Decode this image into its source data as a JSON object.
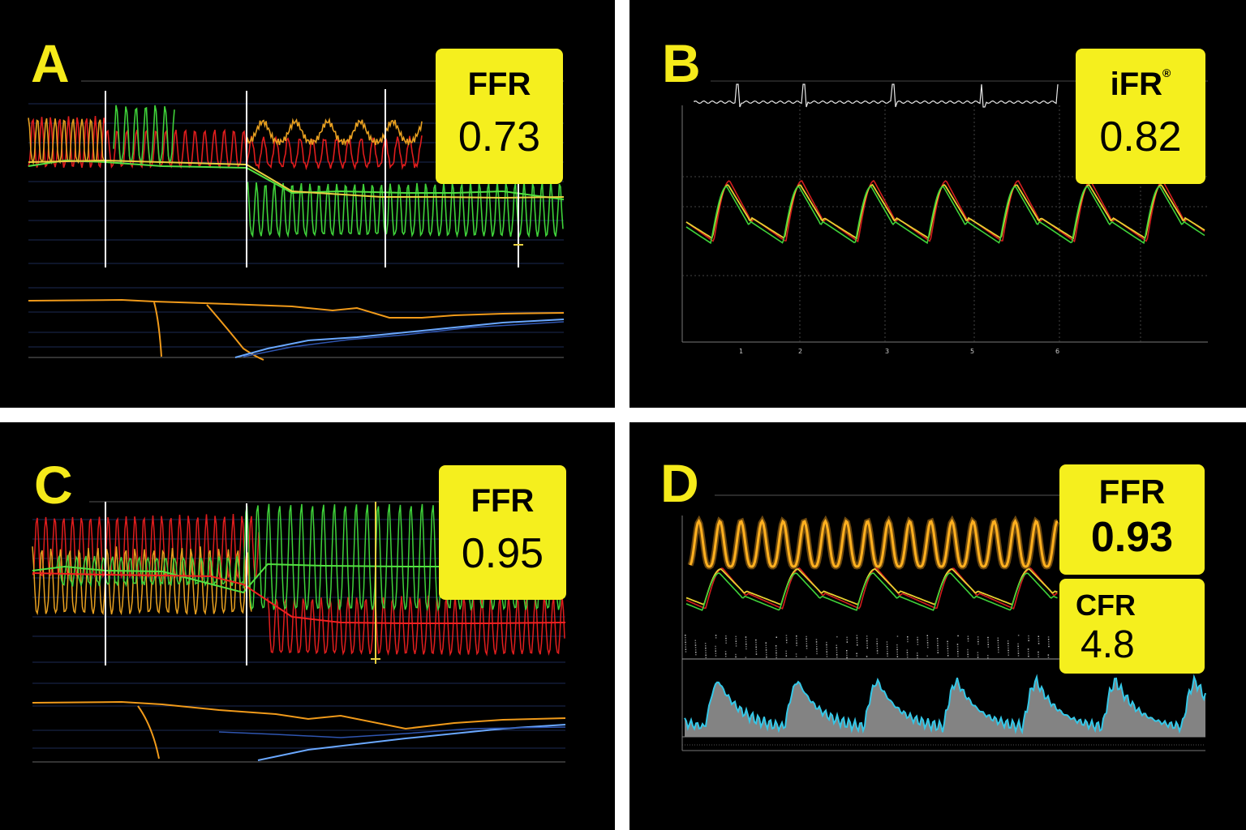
{
  "panels": {
    "a": {
      "letter": "A",
      "metric_label": "FFR",
      "metric_value": "0.73"
    },
    "b": {
      "letter": "B",
      "metric_label": "iFR",
      "metric_mark": "®",
      "metric_value": "0.82",
      "beat_ticks": [
        "1",
        "2",
        "3",
        "5",
        "6"
      ]
    },
    "c": {
      "letter": "C",
      "metric_label": "FFR",
      "metric_value": "0.95"
    },
    "d": {
      "letter": "D",
      "metric_label": "FFR",
      "metric_value": "0.93",
      "metric2_label": "CFR",
      "metric2_value": "4.8"
    }
  },
  "colors": {
    "badge": "#f5ef1e",
    "letter": "#f5ea1a",
    "aortic_pressure": "#e01d1d",
    "distal_pressure": "#3fd23a",
    "average_pressure": "#f0a020",
    "doppler": "#34c8e8",
    "ecg": "#e8e8e8"
  }
}
